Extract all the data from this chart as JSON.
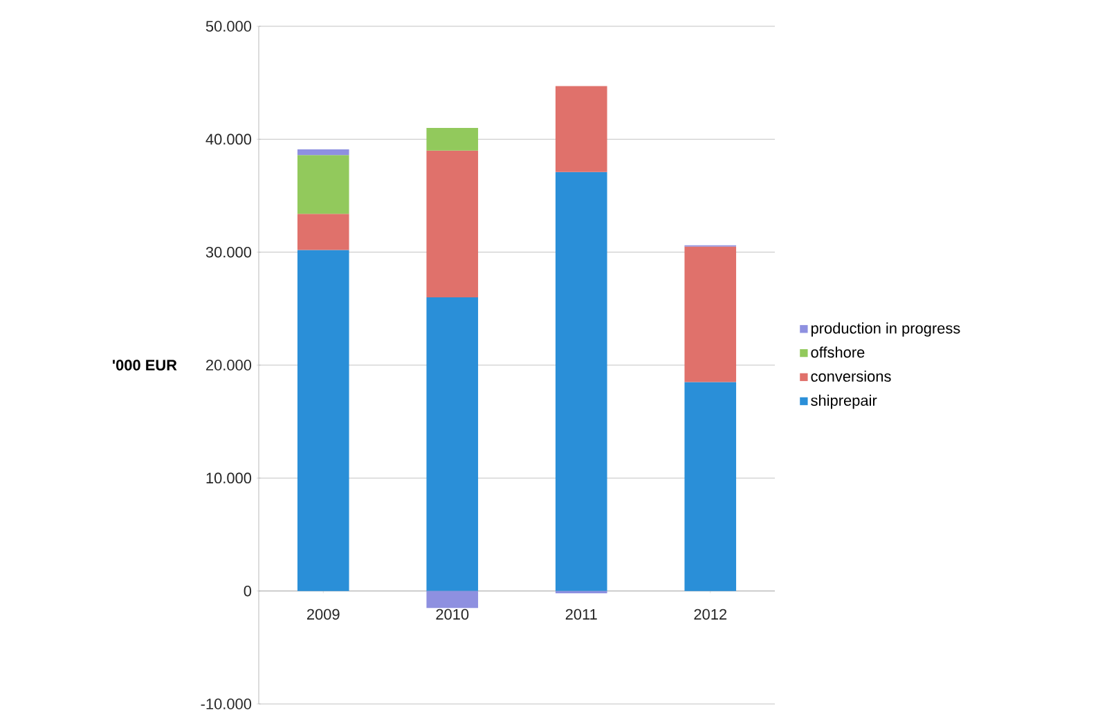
{
  "chart_data": {
    "type": "bar",
    "stacked": true,
    "categories": [
      "2009",
      "2010",
      "2011",
      "2012"
    ],
    "series": [
      {
        "name": "shiprepair",
        "color": "#2a8fd8",
        "values": [
          30200,
          26000,
          37100,
          18500
        ]
      },
      {
        "name": "conversions",
        "color": "#e0716b",
        "values": [
          3200,
          13000,
          7600,
          12000
        ]
      },
      {
        "name": "offshore",
        "color": "#92c95c",
        "values": [
          5200,
          2000,
          0,
          0
        ]
      },
      {
        "name": "production in progress",
        "color": "#8e90e0",
        "values": [
          500,
          -1500,
          -200,
          100
        ]
      }
    ],
    "ylabel": "'000 EUR",
    "ylim": [
      -10000,
      50000
    ],
    "yticks": [
      {
        "value": -10000,
        "label": "-10.000"
      },
      {
        "value": 0,
        "label": "0"
      },
      {
        "value": 10000,
        "label": "10.000"
      },
      {
        "value": 20000,
        "label": "20.000"
      },
      {
        "value": 30000,
        "label": "30.000"
      },
      {
        "value": 40000,
        "label": "40.000"
      },
      {
        "value": 50000,
        "label": "50.000"
      }
    ],
    "grid": "y",
    "legend": "right"
  }
}
